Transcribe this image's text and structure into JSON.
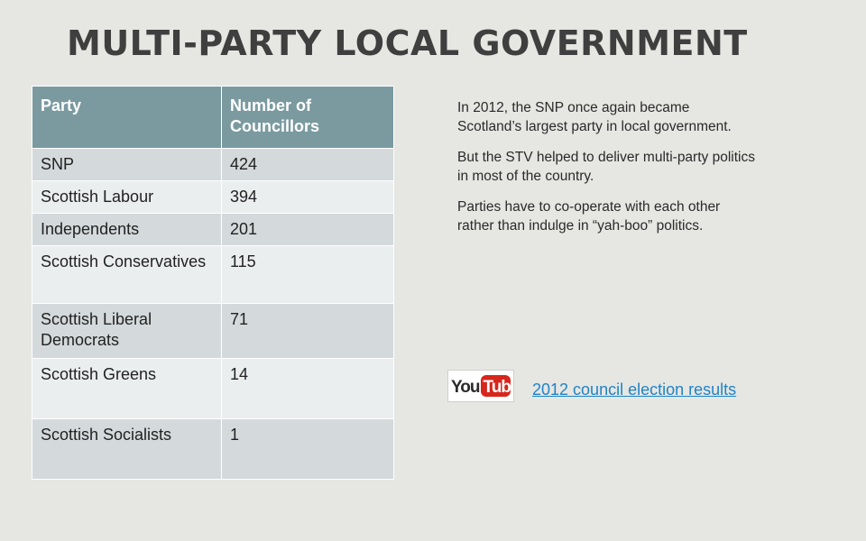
{
  "slide": {
    "title": "MULTI-PARTY LOCAL GOVERNMENT"
  },
  "table": {
    "headers": [
      "Party",
      "Number of Councillors"
    ],
    "rows": [
      {
        "party": "SNP",
        "councillors": "424"
      },
      {
        "party": "Scottish Labour",
        "councillors": "394"
      },
      {
        "party": "Independents",
        "councillors": "201"
      },
      {
        "party": "Scottish Conservatives",
        "councillors": "115"
      },
      {
        "party": "Scottish Liberal Democrats",
        "councillors": "71"
      },
      {
        "party": "Scottish Greens",
        "councillors": "14"
      },
      {
        "party": "Scottish Socialists",
        "councillors": "1"
      }
    ]
  },
  "commentary": {
    "paragraphs": [
      "In 2012, the SNP once again became Scotland’s largest party in local government.",
      "But the STV helped to deliver multi-party politics in most of the country.",
      "Parties have to co-operate with each other rather than indulge in “yah-boo” politics."
    ]
  },
  "video": {
    "logo": "youtube-logo",
    "link_text": "2012 council election results"
  },
  "colors": {
    "background": "#e6e6e3",
    "header_fill": "#7a9aa0",
    "row_dark": "#d4d9db",
    "row_light": "#ebeeef",
    "link": "#1f84c7",
    "title": "#3f3f3f"
  }
}
